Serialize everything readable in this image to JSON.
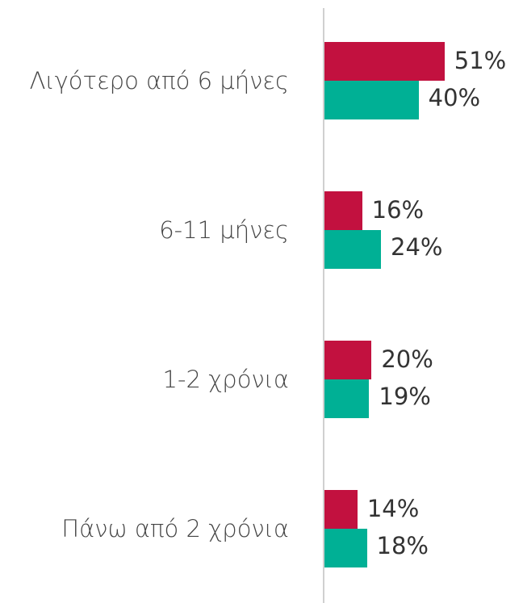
{
  "chart_data": {
    "type": "bar",
    "orientation": "horizontal",
    "categories": [
      "Λιγότερο από 6 μήνες",
      "6-11 μήνες",
      "1-2 χρόνια",
      "Πάνω από 2 χρόνια"
    ],
    "series": [
      {
        "color": "#c2113f",
        "values": [
          51,
          16,
          20,
          14
        ],
        "value_labels": [
          "51%",
          "16%",
          "20%",
          "14%"
        ]
      },
      {
        "color": "#00b095",
        "values": [
          40,
          24,
          19,
          18
        ],
        "value_labels": [
          "40%",
          "24%",
          "19%",
          "18%"
        ]
      }
    ],
    "xlim": [
      0,
      60
    ]
  }
}
